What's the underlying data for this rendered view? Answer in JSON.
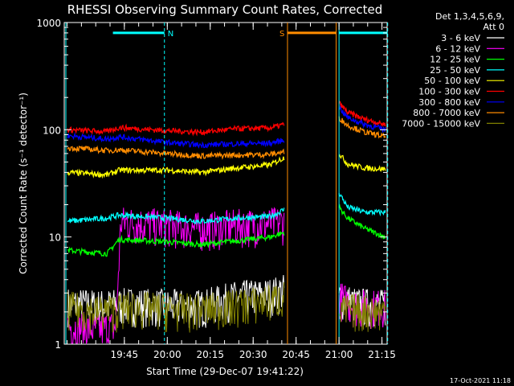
{
  "chart_data": {
    "type": "line",
    "title": "RHESSI Observing Summary Count Rates, Corrected",
    "xlabel": "Start Time (29-Dec-07 19:41:22)",
    "ylabel": "Corrected Count Rate (s⁻¹ detector⁻¹)",
    "yscale": "log",
    "ylim": [
      1,
      1000
    ],
    "xlim_minutes": [
      19.4,
      21.28
    ],
    "x_ticks": [
      "19:45",
      "20:00",
      "20:15",
      "20:30",
      "20:45",
      "21:00",
      "21:15"
    ],
    "y_ticks": [
      "1",
      "10",
      "100",
      "1000"
    ],
    "legend": {
      "header": [
        "Det 1,3,4,5,6,9,",
        "Att 0"
      ],
      "placement": "top-right outside"
    },
    "timestamp": "17-Oct-2021 11:18",
    "markers": [
      {
        "label": "N",
        "color": "#00ffff",
        "start": "19:41",
        "end": "19:59",
        "level": 800
      },
      {
        "label": "S",
        "color": "#ff8c00",
        "start": "20:42",
        "end": "20:59",
        "level": 800
      },
      {
        "label": "",
        "color": "#00ffff",
        "start": "21:00",
        "end": "21:17",
        "level": 800
      }
    ],
    "gap": {
      "start": "20:42",
      "end": "21:00"
    },
    "series": [
      {
        "name": "3 - 6 keV",
        "color": "#ffffff",
        "values_pre": [
          [
            19.42,
            2.6
          ],
          [
            19.6,
            2.5
          ],
          [
            19.8,
            2.6
          ],
          [
            20.0,
            2.5
          ],
          [
            20.2,
            2.5
          ],
          [
            20.4,
            3.0
          ],
          [
            20.6,
            3.2
          ],
          [
            20.68,
            3.5
          ]
        ],
        "values_post": [
          [
            21.0,
            3.0
          ],
          [
            21.1,
            2.6
          ],
          [
            21.27,
            2.5
          ]
        ]
      },
      {
        "name": "6 - 12 keV",
        "color": "#ff00ff",
        "values_pre": [
          [
            19.42,
            1.6
          ],
          [
            19.6,
            1.5
          ],
          [
            19.7,
            1.6
          ],
          [
            19.73,
            15
          ],
          [
            20.0,
            14
          ],
          [
            20.2,
            13
          ],
          [
            20.4,
            14
          ],
          [
            20.6,
            14.5
          ],
          [
            20.68,
            15
          ]
        ],
        "values_post": [
          [
            21.0,
            3.0
          ],
          [
            21.1,
            2.5
          ],
          [
            21.27,
            2.5
          ]
        ]
      },
      {
        "name": "12 - 25 keV",
        "color": "#00ff00",
        "values_pre": [
          [
            19.42,
            7.5
          ],
          [
            19.65,
            7.0
          ],
          [
            19.72,
            9.5
          ],
          [
            20.0,
            9.0
          ],
          [
            20.2,
            8.5
          ],
          [
            20.4,
            9.2
          ],
          [
            20.6,
            10
          ],
          [
            20.68,
            11
          ]
        ],
        "values_post": [
          [
            21.0,
            19
          ],
          [
            21.05,
            15
          ],
          [
            21.15,
            12
          ],
          [
            21.27,
            10
          ]
        ]
      },
      {
        "name": "25 - 50 keV",
        "color": "#00ffff",
        "values_pre": [
          [
            19.42,
            14
          ],
          [
            19.65,
            15
          ],
          [
            19.72,
            16
          ],
          [
            20.0,
            15
          ],
          [
            20.2,
            14
          ],
          [
            20.4,
            15
          ],
          [
            20.6,
            15.5
          ],
          [
            20.68,
            18
          ]
        ],
        "values_post": [
          [
            21.0,
            26
          ],
          [
            21.05,
            19
          ],
          [
            21.15,
            17
          ],
          [
            21.27,
            17
          ]
        ]
      },
      {
        "name": "50 - 100 keV",
        "color": "#ffff00",
        "values_pre": [
          [
            19.42,
            40
          ],
          [
            19.65,
            38
          ],
          [
            19.72,
            42
          ],
          [
            20.0,
            42
          ],
          [
            20.2,
            40
          ],
          [
            20.4,
            44
          ],
          [
            20.6,
            47
          ],
          [
            20.68,
            55
          ]
        ],
        "values_post": [
          [
            21.0,
            60
          ],
          [
            21.05,
            48
          ],
          [
            21.15,
            44
          ],
          [
            21.27,
            43
          ]
        ]
      },
      {
        "name": "100 - 300 keV",
        "color": "#ff0000",
        "values_pre": [
          [
            19.42,
            100
          ],
          [
            19.65,
            96
          ],
          [
            19.72,
            105
          ],
          [
            20.0,
            98
          ],
          [
            20.2,
            95
          ],
          [
            20.4,
            102
          ],
          [
            20.6,
            104
          ],
          [
            20.68,
            112
          ]
        ],
        "values_post": [
          [
            21.0,
            178
          ],
          [
            21.05,
            145
          ],
          [
            21.15,
            125
          ],
          [
            21.27,
            112
          ]
        ]
      },
      {
        "name": "300 - 800 keV",
        "color": "#0000ff",
        "values_pre": [
          [
            19.42,
            88
          ],
          [
            19.65,
            82
          ],
          [
            19.72,
            86
          ],
          [
            20.0,
            76
          ],
          [
            20.2,
            72
          ],
          [
            20.4,
            74
          ],
          [
            20.6,
            75
          ],
          [
            20.68,
            80
          ]
        ],
        "values_post": [
          [
            21.0,
            162
          ],
          [
            21.05,
            130
          ],
          [
            21.15,
            112
          ],
          [
            21.27,
            100
          ]
        ]
      },
      {
        "name": "800 - 7000 keV",
        "color": "#ff8c00",
        "values_pre": [
          [
            19.42,
            68
          ],
          [
            19.65,
            64
          ],
          [
            19.72,
            65
          ],
          [
            20.0,
            60
          ],
          [
            20.2,
            57
          ],
          [
            20.4,
            58
          ],
          [
            20.6,
            59
          ],
          [
            20.68,
            62
          ]
        ],
        "values_post": [
          [
            21.0,
            130
          ],
          [
            21.05,
            110
          ],
          [
            21.15,
            95
          ],
          [
            21.27,
            86
          ]
        ]
      },
      {
        "name": "7000 - 15000 keV",
        "color": "#808000",
        "values_pre": [
          [
            19.42,
            2.4
          ],
          [
            19.6,
            2.2
          ],
          [
            19.8,
            2.4
          ],
          [
            20.0,
            2.3
          ],
          [
            20.2,
            2.3
          ],
          [
            20.4,
            2.5
          ],
          [
            20.6,
            2.8
          ],
          [
            20.68,
            3.0
          ]
        ],
        "values_post": [
          [
            21.0,
            2.2
          ],
          [
            21.1,
            2.3
          ],
          [
            21.27,
            2.2
          ]
        ]
      }
    ]
  }
}
